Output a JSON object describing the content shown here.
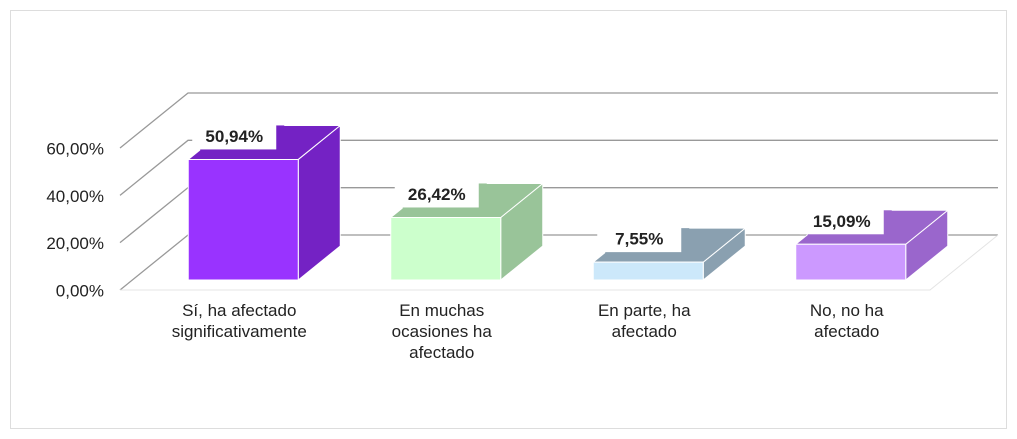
{
  "chart_data": {
    "type": "bar3d",
    "categories": [
      "Sí, ha afectado significativamente",
      "En muchas ocasiones ha afectado",
      "En parte, ha afectado",
      "No, no ha afectado"
    ],
    "values": [
      50.94,
      26.42,
      7.55,
      15.09
    ],
    "value_labels": [
      "50,94%",
      "26,42%",
      "7,55%",
      "15,09%"
    ],
    "colors": [
      "#9933ff",
      "#ccffcc",
      "#cce8fa",
      "#cc99ff"
    ],
    "side_colors": [
      "#7422c4",
      "#99c499",
      "#8aa0b0",
      "#9a66cc"
    ],
    "ylim": [
      0,
      60
    ],
    "yticks": [
      {
        "value": 0,
        "label": "0,00%"
      },
      {
        "value": 20,
        "label": "20,00%"
      },
      {
        "value": 40,
        "label": "40,00%"
      },
      {
        "value": 60,
        "label": "60,00%"
      }
    ],
    "grid": true
  }
}
